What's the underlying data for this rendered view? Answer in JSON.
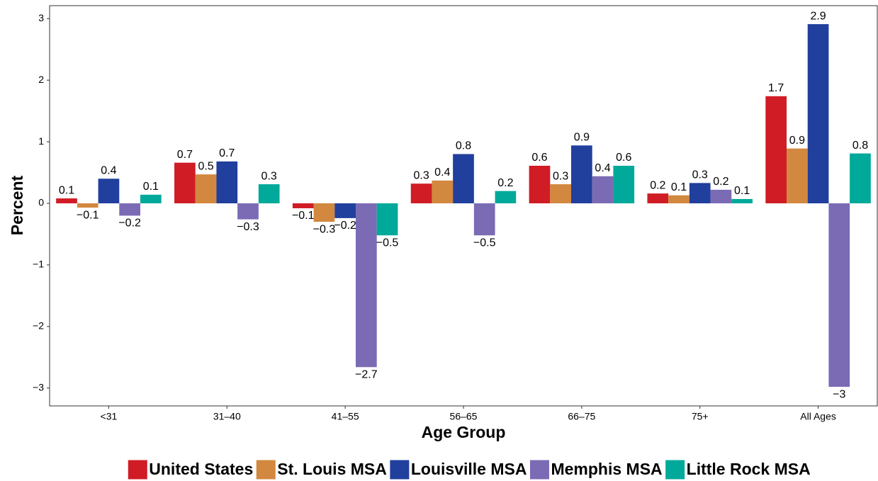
{
  "chart_data": {
    "type": "bar",
    "x_label": "Age Group",
    "y_label": "Percent",
    "categories": [
      "<31",
      "31–40",
      "41–55",
      "56–65",
      "66–75",
      "75+",
      "All Ages"
    ],
    "series": [
      {
        "name": "United States",
        "color": "#d01c25",
        "values": [
          0.08,
          0.66,
          -0.08,
          0.32,
          0.61,
          0.16,
          1.74
        ],
        "value_labels": [
          "0.1",
          "0.7",
          "−0.1",
          "0.3",
          "0.6",
          "0.2",
          "1.7"
        ]
      },
      {
        "name": "St. Louis MSA",
        "color": "#d2883e",
        "values": [
          -0.07,
          0.47,
          -0.3,
          0.37,
          0.31,
          0.13,
          0.89
        ],
        "value_labels": [
          "−0.1",
          "0.5",
          "−0.3",
          "0.4",
          "0.3",
          "0.1",
          "0.9"
        ]
      },
      {
        "name": "Louisville MSA",
        "color": "#213f9c",
        "values": [
          0.4,
          0.68,
          -0.24,
          0.8,
          0.94,
          0.33,
          2.91
        ],
        "value_labels": [
          "0.4",
          "0.7",
          "−0.2",
          "0.8",
          "0.9",
          "0.3",
          "2.9"
        ]
      },
      {
        "name": "Memphis MSA",
        "color": "#7b6bb5",
        "values": [
          -0.2,
          -0.26,
          -2.66,
          -0.52,
          0.44,
          0.22,
          -2.98
        ],
        "value_labels": [
          "−0.2",
          "−0.3",
          "−2.7",
          "−0.5",
          "0.4",
          "0.2",
          "−3"
        ]
      },
      {
        "name": "Little Rock MSA",
        "color": "#00a99a",
        "values": [
          0.14,
          0.31,
          -0.52,
          0.2,
          0.61,
          0.07,
          0.81
        ],
        "value_labels": [
          "0.1",
          "0.3",
          "−0.5",
          "0.2",
          "0.6",
          "0.1",
          "0.8"
        ]
      }
    ],
    "ylim": [
      -3.29,
      3.21
    ],
    "yticks": [
      {
        "value": -3,
        "label": "−3"
      },
      {
        "value": -2,
        "label": "−2"
      },
      {
        "value": -1,
        "label": "−1"
      },
      0,
      1,
      2,
      3
    ],
    "legend": "bottom"
  }
}
